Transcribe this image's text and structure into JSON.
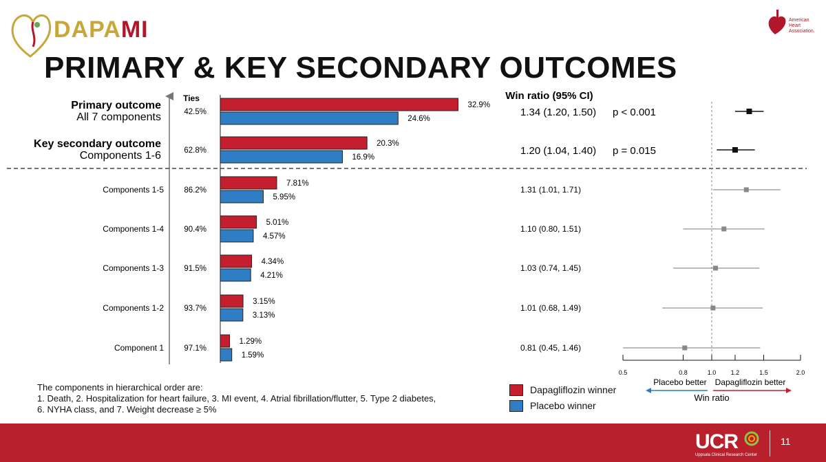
{
  "header": {
    "logo_part1": "DAPA",
    "logo_part2": "MI",
    "aha_text": "American\nHeart\nAssociation.",
    "title": "PRIMARY & KEY SECONDARY OUTCOMES"
  },
  "colors": {
    "dapagliflozin": "#c41e2f",
    "placebo": "#2f7dc4",
    "footer": "#b8202c",
    "logo_gold": "#c8a73a",
    "logo_red": "#b0172a"
  },
  "chart_data": {
    "type": "bar",
    "orientation": "horizontal",
    "ties_header": "Ties",
    "winratio_header": "Win ratio (95% CI)",
    "rows": [
      {
        "label_bold": "Primary outcome",
        "label_sub": "All 7 components",
        "ties": "42.5%",
        "dapa": 32.9,
        "dapa_label": "32.9%",
        "placebo": 24.6,
        "placebo_label": "24.6%",
        "win_ratio_text": "1.34 (1.20, 1.50)",
        "p_value": "p < 0.001",
        "wr": 1.34,
        "ci": [
          1.2,
          1.5
        ],
        "primary": true
      },
      {
        "label_bold": "Key secondary outcome",
        "label_sub": "Components 1-6",
        "ties": "62.8%",
        "dapa": 20.3,
        "dapa_label": "20.3%",
        "placebo": 16.9,
        "placebo_label": "16.9%",
        "win_ratio_text": "1.20 (1.04, 1.40)",
        "p_value": "p = 0.015",
        "wr": 1.2,
        "ci": [
          1.04,
          1.4
        ],
        "primary": true
      },
      {
        "label": "Components 1-5",
        "ties": "86.2%",
        "dapa": 7.81,
        "dapa_label": "7.81%",
        "placebo": 5.95,
        "placebo_label": "5.95%",
        "win_ratio_text": "1.31 (1.01, 1.71)",
        "wr": 1.31,
        "ci": [
          1.01,
          1.71
        ]
      },
      {
        "label": "Components 1-4",
        "ties": "90.4%",
        "dapa": 5.01,
        "dapa_label": "5.01%",
        "placebo": 4.57,
        "placebo_label": "4.57%",
        "win_ratio_text": "1.10 (0.80, 1.51)",
        "wr": 1.1,
        "ci": [
          0.8,
          1.51
        ]
      },
      {
        "label": "Components 1-3",
        "ties": "91.5%",
        "dapa": 4.34,
        "dapa_label": "4.34%",
        "placebo": 4.21,
        "placebo_label": "4.21%",
        "win_ratio_text": "1.03 (0.74, 1.45)",
        "wr": 1.03,
        "ci": [
          0.74,
          1.45
        ]
      },
      {
        "label": "Components 1-2",
        "ties": "93.7%",
        "dapa": 3.15,
        "dapa_label": "3.15%",
        "placebo": 3.13,
        "placebo_label": "3.13%",
        "win_ratio_text": "1.01 (0.68, 1.49)",
        "wr": 1.01,
        "ci": [
          0.68,
          1.49
        ]
      },
      {
        "label": "Component 1",
        "ties": "97.1%",
        "dapa": 1.29,
        "dapa_label": "1.29%",
        "placebo": 1.59,
        "placebo_label": "1.59%",
        "win_ratio_text": "0.81 (0.45, 1.46)",
        "wr": 0.81,
        "ci": [
          0.45,
          1.46
        ]
      }
    ],
    "forest": {
      "scale": "log",
      "ticks": [
        0.5,
        0.8,
        1.0,
        1.2,
        1.5,
        2.0
      ],
      "tick_labels": [
        "0.5",
        "0.8",
        "1.0",
        "1.2",
        "1.5",
        "2.0"
      ],
      "xlim": [
        0.5,
        2.0
      ],
      "reference": 1.0,
      "left_label": "Placebo better",
      "right_label": "Dapagliflozin better",
      "xlabel": "Win ratio"
    }
  },
  "footnote": {
    "line1": "The components in hierarchical order are:",
    "line2": "1. Death, 2. Hospitalization for heart failure, 3. MI event, 4. Atrial fibrillation/flutter, 5. Type 2 diabetes,",
    "line3": "6. NYHA class, and 7. Weight decrease ≥ 5%"
  },
  "legend": {
    "dapa_label": "Dapagliflozin winner",
    "placebo_label": "Placebo winner"
  },
  "footer": {
    "brand": "UCR",
    "brand_sub": "Uppsala Clinical Research Center",
    "page_number": "11"
  }
}
